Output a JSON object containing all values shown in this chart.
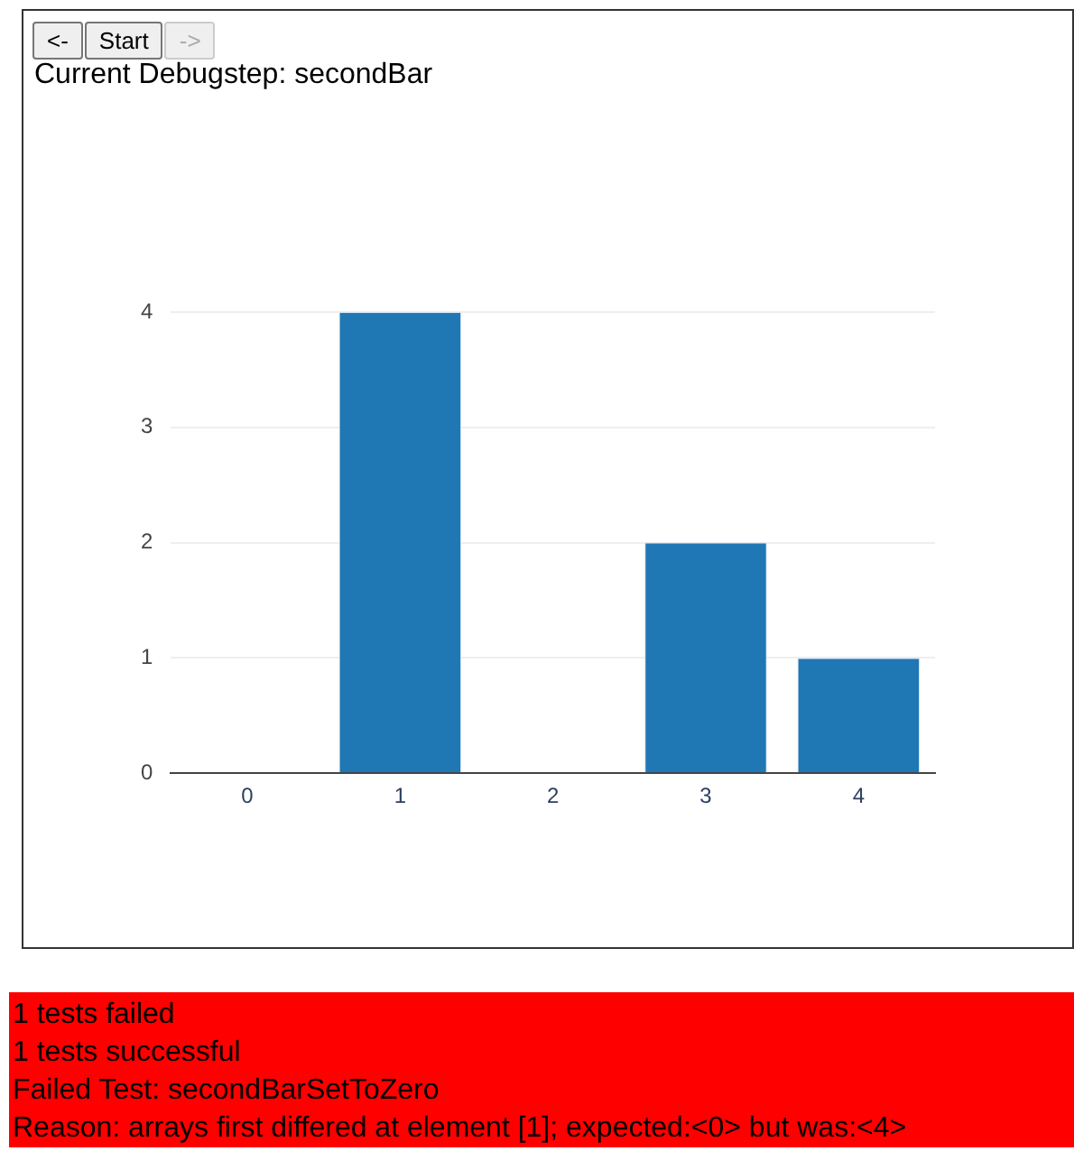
{
  "chart_data": {
    "type": "bar",
    "title": "Current Debugstep: secondBar",
    "categories": [
      "0",
      "1",
      "2",
      "3",
      "4"
    ],
    "values": [
      0,
      4,
      0,
      2,
      1
    ],
    "color": "#1f77b4",
    "ylim": [
      0,
      4
    ],
    "yticks": [
      0,
      1,
      2,
      3,
      4
    ],
    "grid": "y",
    "annotations": [
      "<-",
      "Start",
      "->",
      "1 tests failed",
      "1 tests successful",
      "Failed Test: secondBarSetToZero",
      "Reason: arrays first differed at element [1]; expected:<0> but was:<4>"
    ]
  }
}
